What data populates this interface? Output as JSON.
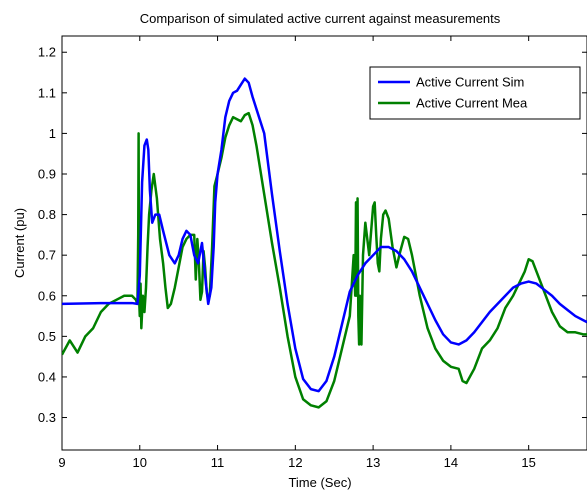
{
  "chart_data": {
    "type": "line",
    "title": "Comparison of simulated active current against measurements",
    "xlabel": "Time (Sec)",
    "ylabel": "Current (pu)",
    "xlim": [
      9,
      15.75
    ],
    "ylim": [
      0.22,
      1.24
    ],
    "xticks": [
      9,
      10,
      11,
      12,
      13,
      14,
      15
    ],
    "xtick_labels": [
      "9",
      "10",
      "11",
      "12",
      "13",
      "14",
      "15"
    ],
    "yticks": [
      0.3,
      0.4,
      0.5,
      0.6,
      0.7,
      0.8,
      0.9,
      1.0,
      1.1,
      1.2
    ],
    "ytick_labels": [
      "0.3",
      "0.4",
      "0.5",
      "0.6",
      "0.7",
      "0.8",
      "0.9",
      "1",
      "1.1",
      "1.2"
    ],
    "grid": false,
    "legend_position": "top-right",
    "series": [
      {
        "name": "Active Current Sim",
        "color": "#0000ff",
        "x": [
          9.0,
          9.5,
          9.9,
          9.97,
          10.0,
          10.03,
          10.06,
          10.09,
          10.11,
          10.13,
          10.16,
          10.2,
          10.25,
          10.3,
          10.38,
          10.45,
          10.5,
          10.55,
          10.6,
          10.65,
          10.7,
          10.75,
          10.8,
          10.85,
          10.88,
          10.92,
          10.95,
          10.97,
          11.0,
          11.05,
          11.1,
          11.15,
          11.2,
          11.25,
          11.3,
          11.35,
          11.4,
          11.45,
          11.5,
          11.6,
          11.7,
          11.8,
          11.9,
          12.0,
          12.1,
          12.2,
          12.3,
          12.4,
          12.5,
          12.6,
          12.7,
          12.8,
          12.9,
          13.0,
          13.1,
          13.2,
          13.3,
          13.4,
          13.5,
          13.6,
          13.7,
          13.8,
          13.9,
          14.0,
          14.1,
          14.2,
          14.3,
          14.4,
          14.5,
          14.6,
          14.7,
          14.8,
          14.9,
          15.0,
          15.1,
          15.2,
          15.3,
          15.4,
          15.5,
          15.6,
          15.7,
          15.75
        ],
        "y": [
          0.58,
          0.582,
          0.582,
          0.58,
          0.65,
          0.88,
          0.97,
          0.985,
          0.96,
          0.86,
          0.78,
          0.8,
          0.8,
          0.76,
          0.7,
          0.68,
          0.7,
          0.74,
          0.76,
          0.75,
          0.7,
          0.68,
          0.73,
          0.63,
          0.58,
          0.62,
          0.72,
          0.83,
          0.9,
          0.96,
          1.04,
          1.08,
          1.1,
          1.105,
          1.12,
          1.135,
          1.125,
          1.09,
          1.06,
          1.0,
          0.85,
          0.71,
          0.58,
          0.47,
          0.395,
          0.37,
          0.365,
          0.39,
          0.45,
          0.53,
          0.61,
          0.65,
          0.68,
          0.7,
          0.72,
          0.72,
          0.71,
          0.69,
          0.66,
          0.62,
          0.58,
          0.54,
          0.505,
          0.485,
          0.48,
          0.49,
          0.51,
          0.535,
          0.56,
          0.58,
          0.6,
          0.62,
          0.63,
          0.635,
          0.63,
          0.615,
          0.6,
          0.58,
          0.565,
          0.55,
          0.54,
          0.535
        ]
      },
      {
        "name": "Active Current Mea",
        "color": "#008000",
        "x": [
          9.0,
          9.1,
          9.2,
          9.3,
          9.4,
          9.5,
          9.6,
          9.7,
          9.8,
          9.9,
          9.95,
          9.97,
          9.98,
          9.985,
          9.99,
          10.0,
          10.01,
          10.02,
          10.04,
          10.06,
          10.08,
          10.1,
          10.12,
          10.15,
          10.18,
          10.22,
          10.26,
          10.3,
          10.33,
          10.36,
          10.4,
          10.45,
          10.5,
          10.55,
          10.6,
          10.65,
          10.7,
          10.72,
          10.74,
          10.76,
          10.78,
          10.8,
          10.82,
          10.84,
          10.86,
          10.88,
          10.9,
          10.93,
          10.96,
          11.0,
          11.05,
          11.1,
          11.15,
          11.2,
          11.25,
          11.3,
          11.35,
          11.4,
          11.45,
          11.5,
          11.6,
          11.7,
          11.8,
          11.9,
          12.0,
          12.1,
          12.2,
          12.3,
          12.4,
          12.5,
          12.6,
          12.7,
          12.75,
          12.77,
          12.78,
          12.79,
          12.8,
          12.81,
          12.82,
          12.83,
          12.84,
          12.85,
          12.87,
          12.9,
          12.95,
          13.0,
          13.02,
          13.04,
          13.06,
          13.08,
          13.1,
          13.13,
          13.16,
          13.2,
          13.25,
          13.3,
          13.35,
          13.4,
          13.45,
          13.5,
          13.6,
          13.7,
          13.8,
          13.9,
          14.0,
          14.1,
          14.15,
          14.2,
          14.3,
          14.4,
          14.5,
          14.6,
          14.7,
          14.8,
          14.9,
          14.95,
          15.0,
          15.05,
          15.1,
          15.2,
          15.3,
          15.4,
          15.5,
          15.6,
          15.7,
          15.75
        ],
        "y": [
          0.455,
          0.49,
          0.46,
          0.5,
          0.52,
          0.56,
          0.58,
          0.59,
          0.6,
          0.6,
          0.59,
          0.58,
          0.75,
          1.0,
          0.6,
          0.55,
          0.63,
          0.52,
          0.6,
          0.56,
          0.62,
          0.72,
          0.8,
          0.86,
          0.9,
          0.84,
          0.74,
          0.68,
          0.62,
          0.57,
          0.58,
          0.62,
          0.67,
          0.72,
          0.74,
          0.75,
          0.75,
          0.64,
          0.74,
          0.68,
          0.59,
          0.61,
          0.71,
          0.67,
          0.61,
          0.59,
          0.6,
          0.72,
          0.87,
          0.9,
          0.94,
          0.99,
          1.02,
          1.04,
          1.035,
          1.03,
          1.045,
          1.05,
          1.02,
          0.97,
          0.85,
          0.73,
          0.62,
          0.5,
          0.4,
          0.345,
          0.33,
          0.325,
          0.34,
          0.39,
          0.47,
          0.55,
          0.7,
          0.6,
          0.83,
          0.6,
          0.84,
          0.55,
          0.48,
          0.6,
          0.5,
          0.48,
          0.7,
          0.78,
          0.7,
          0.82,
          0.83,
          0.75,
          0.68,
          0.66,
          0.74,
          0.8,
          0.81,
          0.79,
          0.72,
          0.67,
          0.71,
          0.745,
          0.74,
          0.7,
          0.6,
          0.52,
          0.47,
          0.44,
          0.425,
          0.42,
          0.39,
          0.385,
          0.42,
          0.47,
          0.49,
          0.52,
          0.57,
          0.6,
          0.64,
          0.66,
          0.69,
          0.685,
          0.66,
          0.61,
          0.56,
          0.525,
          0.51,
          0.51,
          0.505,
          0.505
        ]
      }
    ]
  }
}
